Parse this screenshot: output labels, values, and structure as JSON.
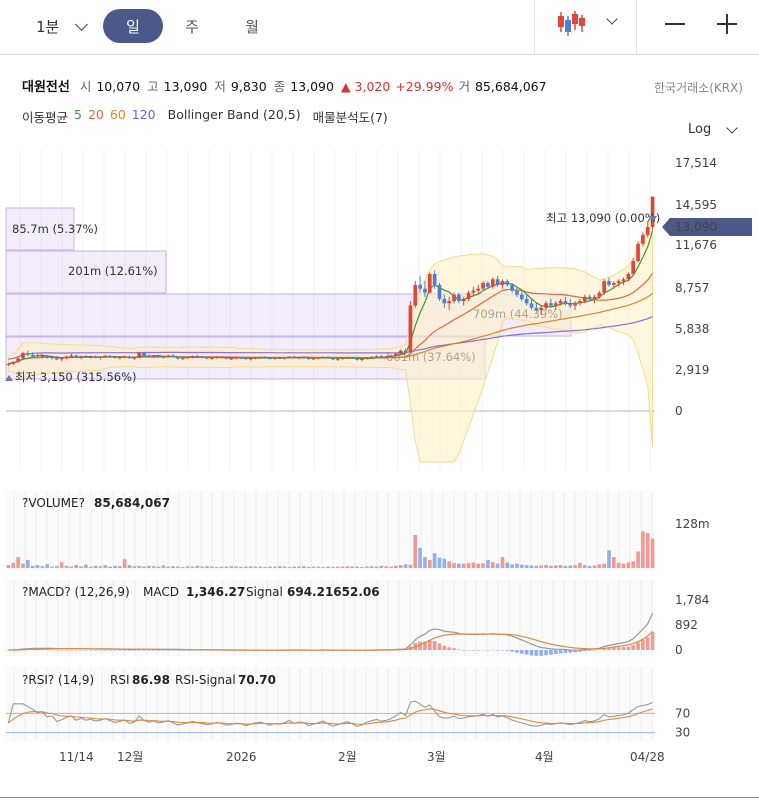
{
  "toolbar": {
    "interval_select": "1분",
    "tabs": [
      "일",
      "주",
      "월"
    ],
    "active_tab": "일"
  },
  "stock": {
    "name": "대원전선",
    "open_label": "시",
    "open": "10,070",
    "high_label": "고",
    "high": "13,090",
    "low_label": "저",
    "low": "9,830",
    "close_label": "종",
    "close": "13,090",
    "change": "▲ 3,020",
    "change_pct": "+29.99%",
    "volume_label": "거",
    "volume": "85,684,067",
    "exchange": "한국거래소(KRX)"
  },
  "indicators": {
    "ma_label": "이동평균",
    "ma5": "5",
    "ma20": "20",
    "ma60": "60",
    "ma120": "120",
    "bollinger": "Bollinger Band (20,5)",
    "volume_profile": "매물분석도(7)"
  },
  "scale_toggle": "Log",
  "colors": {
    "up": "#e0463c",
    "down": "#4d7fd9",
    "ma5": "#3a9a3a",
    "ma20": "#e06a3a",
    "ma60": "#d88a2a",
    "ma120": "#8c6ee0",
    "accent": "#4a5989",
    "bollinger": "#f5dc8c"
  },
  "chart_data": [
    {
      "type": "candlestick",
      "name": "price",
      "scale": "log",
      "y_ticks": [
        "17,514",
        "14,595",
        "11,676",
        "8,757",
        "5,838",
        "2,919",
        "0"
      ],
      "y_tick_values": [
        17514,
        14595,
        11676,
        8757,
        5838,
        2919,
        0
      ],
      "last_price_tag": "13,090",
      "last_price": 13090,
      "high_annotation": "최고 13,090 (0.00%)",
      "low_annotation": "최저 3,150 (315.56%)",
      "x_ticks": [
        "11/14",
        "12월",
        "2026",
        "2월",
        "3월",
        "4월",
        "04/28"
      ],
      "ohlc": [
        [
          3060,
          3100,
          3020,
          3080
        ],
        [
          3080,
          3150,
          3050,
          3130
        ],
        [
          3130,
          3260,
          3110,
          3230
        ],
        [
          3230,
          3420,
          3200,
          3380
        ],
        [
          3380,
          3450,
          3290,
          3330
        ],
        [
          3330,
          3400,
          3280,
          3310
        ],
        [
          3310,
          3360,
          3250,
          3280
        ],
        [
          3280,
          3340,
          3230,
          3300
        ],
        [
          3300,
          3330,
          3220,
          3250
        ],
        [
          3250,
          3300,
          3200,
          3270
        ],
        [
          3270,
          3290,
          3180,
          3200
        ],
        [
          3200,
          3250,
          3150,
          3230
        ],
        [
          3230,
          3300,
          3200,
          3280
        ],
        [
          3280,
          3360,
          3250,
          3310
        ],
        [
          3310,
          3330,
          3230,
          3250
        ],
        [
          3250,
          3300,
          3210,
          3290
        ],
        [
          3290,
          3320,
          3240,
          3260
        ],
        [
          3260,
          3300,
          3220,
          3280
        ],
        [
          3280,
          3310,
          3230,
          3250
        ],
        [
          3250,
          3280,
          3200,
          3270
        ],
        [
          3270,
          3330,
          3240,
          3300
        ],
        [
          3300,
          3320,
          3250,
          3270
        ],
        [
          3270,
          3300,
          3220,
          3240
        ],
        [
          3240,
          3290,
          3200,
          3260
        ],
        [
          3260,
          3310,
          3230,
          3280
        ],
        [
          3280,
          3300,
          3220,
          3230
        ],
        [
          3230,
          3270,
          3190,
          3250
        ],
        [
          3250,
          3420,
          3230,
          3390
        ],
        [
          3390,
          3410,
          3290,
          3310
        ],
        [
          3310,
          3340,
          3250,
          3270
        ],
        [
          3270,
          3320,
          3240,
          3300
        ],
        [
          3300,
          3330,
          3250,
          3260
        ],
        [
          3260,
          3290,
          3220,
          3280
        ],
        [
          3280,
          3330,
          3250,
          3310
        ],
        [
          3310,
          3340,
          3260,
          3270
        ],
        [
          3270,
          3290,
          3200,
          3220
        ],
        [
          3220,
          3260,
          3180,
          3240
        ],
        [
          3240,
          3280,
          3210,
          3260
        ],
        [
          3260,
          3310,
          3230,
          3290
        ],
        [
          3290,
          3330,
          3250,
          3270
        ],
        [
          3270,
          3300,
          3230,
          3250
        ],
        [
          3250,
          3280,
          3210,
          3230
        ],
        [
          3230,
          3260,
          3190,
          3240
        ],
        [
          3240,
          3290,
          3220,
          3270
        ],
        [
          3270,
          3290,
          3230,
          3250
        ],
        [
          3250,
          3270,
          3200,
          3220
        ],
        [
          3220,
          3250,
          3180,
          3230
        ],
        [
          3230,
          3270,
          3200,
          3250
        ],
        [
          3250,
          3280,
          3210,
          3240
        ],
        [
          3240,
          3260,
          3190,
          3210
        ],
        [
          3210,
          3240,
          3170,
          3230
        ],
        [
          3230,
          3260,
          3200,
          3250
        ],
        [
          3250,
          3280,
          3220,
          3260
        ],
        [
          3260,
          3290,
          3220,
          3240
        ],
        [
          3240,
          3260,
          3200,
          3220
        ],
        [
          3220,
          3250,
          3190,
          3240
        ],
        [
          3240,
          3270,
          3210,
          3230
        ],
        [
          3230,
          3260,
          3200,
          3250
        ],
        [
          3250,
          3290,
          3230,
          3280
        ],
        [
          3280,
          3300,
          3230,
          3240
        ],
        [
          3240,
          3270,
          3210,
          3260
        ],
        [
          3260,
          3290,
          3220,
          3250
        ],
        [
          3250,
          3260,
          3190,
          3210
        ],
        [
          3210,
          3240,
          3180,
          3230
        ],
        [
          3230,
          3260,
          3200,
          3250
        ],
        [
          3250,
          3280,
          3220,
          3270
        ],
        [
          3270,
          3290,
          3220,
          3230
        ],
        [
          3230,
          3250,
          3180,
          3200
        ],
        [
          3200,
          3230,
          3160,
          3220
        ],
        [
          3220,
          3250,
          3190,
          3240
        ],
        [
          3240,
          3270,
          3210,
          3260
        ],
        [
          3260,
          3270,
          3210,
          3230
        ],
        [
          3230,
          3250,
          3170,
          3190
        ],
        [
          3190,
          3230,
          3150,
          3210
        ],
        [
          3210,
          3260,
          3190,
          3250
        ],
        [
          3250,
          3290,
          3220,
          3270
        ],
        [
          3270,
          3310,
          3240,
          3290
        ],
        [
          3290,
          3330,
          3250,
          3270
        ],
        [
          3270,
          3300,
          3240,
          3280
        ],
        [
          3280,
          3330,
          3260,
          3310
        ],
        [
          3310,
          3380,
          3290,
          3360
        ],
        [
          3360,
          3480,
          3340,
          3450
        ],
        [
          3450,
          3520,
          3380,
          3410
        ],
        [
          3410,
          5300,
          3400,
          5100
        ],
        [
          5100,
          6300,
          5000,
          6100
        ],
        [
          6100,
          6600,
          5700,
          5900
        ],
        [
          5900,
          6300,
          5500,
          5700
        ],
        [
          5700,
          6800,
          5650,
          6700
        ],
        [
          6700,
          6900,
          5900,
          6100
        ],
        [
          6100,
          6200,
          5300,
          5400
        ],
        [
          5400,
          5600,
          5000,
          5200
        ],
        [
          5200,
          5500,
          4900,
          5300
        ],
        [
          5300,
          5700,
          5200,
          5600
        ],
        [
          5600,
          5700,
          5200,
          5300
        ],
        [
          5300,
          5500,
          5100,
          5400
        ],
        [
          5400,
          5800,
          5300,
          5700
        ],
        [
          5700,
          6000,
          5500,
          5800
        ],
        [
          5800,
          6100,
          5600,
          5900
        ],
        [
          5900,
          6300,
          5800,
          6200
        ],
        [
          6200,
          6300,
          5900,
          6000
        ],
        [
          6000,
          6500,
          5900,
          6400
        ],
        [
          6400,
          6600,
          6000,
          6100
        ],
        [
          6100,
          6400,
          5900,
          6300
        ],
        [
          6300,
          6400,
          6000,
          6100
        ],
        [
          6100,
          6200,
          5700,
          5800
        ],
        [
          5800,
          6000,
          5500,
          5600
        ],
        [
          5600,
          5800,
          5300,
          5400
        ],
        [
          5400,
          5600,
          5100,
          5200
        ],
        [
          5200,
          5400,
          4900,
          5000
        ],
        [
          5000,
          5200,
          4800,
          4900
        ],
        [
          4900,
          5100,
          4700,
          5000
        ],
        [
          5000,
          5300,
          4900,
          5200
        ],
        [
          5200,
          5400,
          5000,
          5100
        ],
        [
          5100,
          5300,
          4900,
          5200
        ],
        [
          5200,
          5400,
          5100,
          5300
        ],
        [
          5300,
          5500,
          5100,
          5200
        ],
        [
          5200,
          5400,
          5000,
          5100
        ],
        [
          5100,
          5300,
          4900,
          5200
        ],
        [
          5200,
          5400,
          5100,
          5300
        ],
        [
          5300,
          5600,
          5200,
          5500
        ],
        [
          5500,
          5600,
          5300,
          5400
        ],
        [
          5400,
          5600,
          5200,
          5500
        ],
        [
          5500,
          5800,
          5400,
          5700
        ],
        [
          5700,
          6400,
          5600,
          6300
        ],
        [
          6300,
          6500,
          6000,
          6100
        ],
        [
          6100,
          6300,
          5900,
          6200
        ],
        [
          6200,
          6400,
          6000,
          6300
        ],
        [
          6300,
          6500,
          6100,
          6400
        ],
        [
          6400,
          6800,
          6300,
          6700
        ],
        [
          6700,
          7700,
          6600,
          7500
        ],
        [
          7500,
          8900,
          7400,
          8700
        ],
        [
          8700,
          9600,
          8500,
          9400
        ],
        [
          9400,
          10600,
          9200,
          10070
        ],
        [
          10070,
          13090,
          9830,
          13090
        ]
      ],
      "volume_profile": [
        {
          "label": "85.7m (5.37%)"
        },
        {
          "label": "201m (12.61%)"
        },
        {
          "label": "709m (44.39%)"
        },
        {
          "label": "601m (37.64%)"
        }
      ]
    },
    {
      "type": "bar",
      "name": "VOLUME",
      "title": "?VOLUME?",
      "value_text": "85,684,067",
      "y_ticks": [
        "128m"
      ],
      "y_tick_values": [
        128
      ],
      "values_m": [
        8,
        14,
        30,
        12,
        22,
        6,
        8,
        5,
        10,
        4,
        5,
        16,
        6,
        4,
        8,
        5,
        9,
        4,
        6,
        5,
        8,
        4,
        6,
        5,
        24,
        8,
        5,
        6,
        4,
        6,
        5,
        4,
        7,
        4,
        5,
        4,
        3,
        5,
        4,
        6,
        4,
        5,
        4,
        3,
        4,
        4,
        5,
        4,
        3,
        4,
        5,
        4,
        4,
        3,
        4,
        4,
        5,
        4,
        3,
        4,
        4,
        5,
        3,
        4,
        4,
        3,
        4,
        3,
        4,
        4,
        5,
        4,
        4,
        3,
        4,
        5,
        4,
        6,
        5,
        4,
        6,
        8,
        10,
        9,
        90,
        55,
        30,
        22,
        40,
        28,
        25,
        18,
        14,
        12,
        12,
        14,
        15,
        12,
        13,
        22,
        16,
        12,
        30,
        15,
        10,
        12,
        9,
        8,
        7,
        6,
        7,
        8,
        6,
        7,
        8,
        6,
        7,
        8,
        14,
        8,
        6,
        7,
        10,
        12,
        48,
        30,
        14,
        12,
        15,
        18,
        45,
        100,
        95,
        80,
        85.7
      ]
    },
    {
      "type": "line",
      "name": "MACD",
      "title": "?MACD? (12,26,9)",
      "macd_label": "MACD",
      "macd_value": "1,346.27",
      "signal_label": "Signal",
      "signal_value": "694.21652.06",
      "y_ticks": [
        "1,784",
        "892",
        "0"
      ],
      "y_tick_values": [
        1784,
        892,
        0
      ]
    },
    {
      "type": "line",
      "name": "RSI",
      "title": "?RSI? (14,9)",
      "rsi_label": "RSI",
      "rsi_value": "86.98",
      "signal_label": "RSI-Signal",
      "signal_value": "70.70",
      "y_ticks": [
        "70",
        "30"
      ],
      "y_tick_values": [
        70,
        30
      ]
    }
  ]
}
